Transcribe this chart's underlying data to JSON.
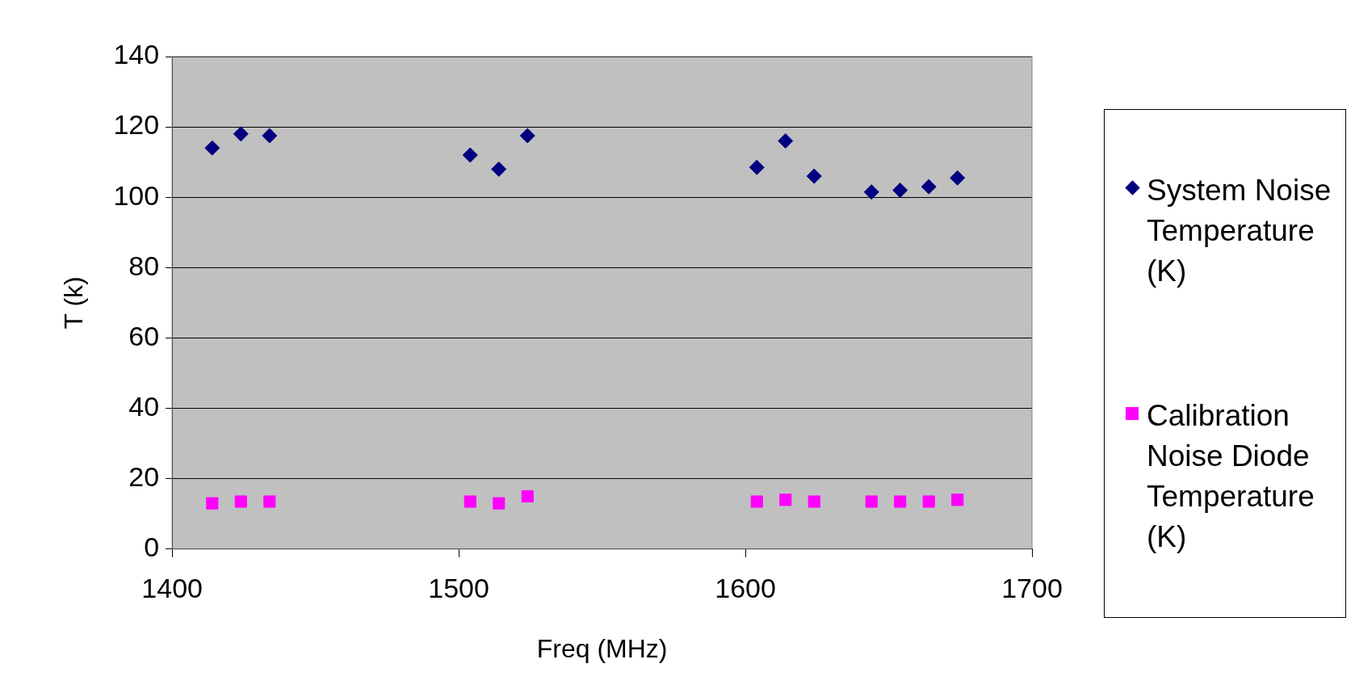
{
  "chart_data": {
    "type": "scatter",
    "xlabel": "Freq (MHz)",
    "ylabel": "T (k)",
    "x": [
      1414,
      1424,
      1434,
      1504,
      1514,
      1524,
      1604,
      1614,
      1624,
      1644,
      1654,
      1664,
      1674
    ],
    "series": [
      {
        "name": "System Noise Temperature (K)",
        "color": "#000080",
        "marker": "diamond",
        "values": [
          114,
          118,
          117.5,
          112,
          108,
          117.5,
          108.5,
          116,
          106,
          101.5,
          102,
          103,
          105.5
        ]
      },
      {
        "name": "Calibration Noise Diode Temperature (K)",
        "color": "#ff00ff",
        "marker": "square",
        "values": [
          13,
          13.5,
          13.5,
          13.5,
          13,
          15,
          13.5,
          14,
          13.5,
          13.5,
          13.5,
          13.5,
          14
        ]
      }
    ],
    "xlim": [
      1400,
      1700
    ],
    "xticks": [
      1400,
      1500,
      1600,
      1700
    ],
    "ylim": [
      0,
      140
    ],
    "yticks": [
      0,
      20,
      40,
      60,
      80,
      100,
      120,
      140
    ],
    "grid": "y",
    "legend": "right"
  }
}
